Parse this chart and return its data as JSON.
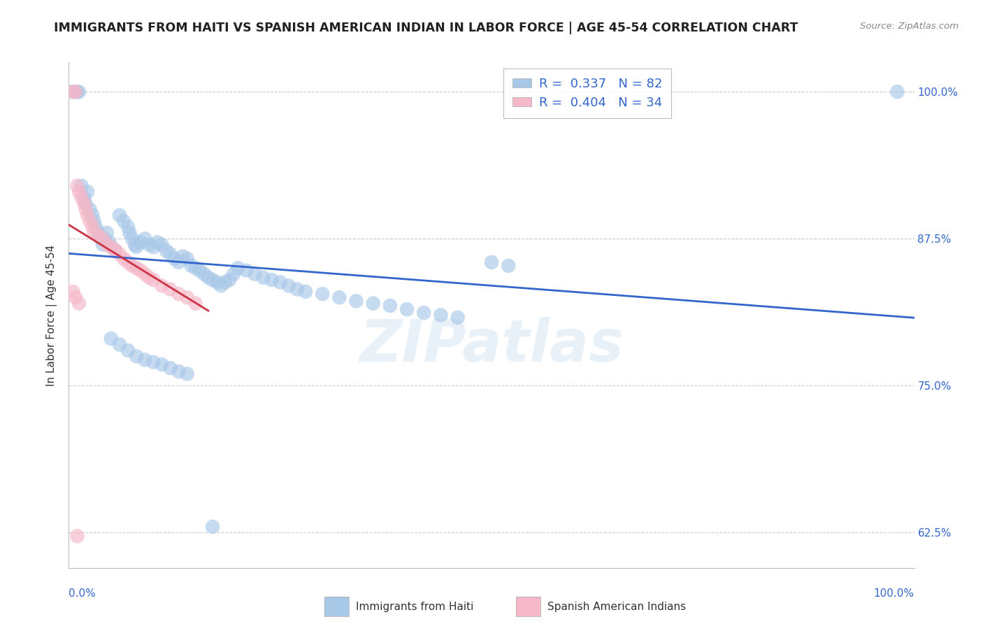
{
  "title": "IMMIGRANTS FROM HAITI VS SPANISH AMERICAN INDIAN IN LABOR FORCE | AGE 45-54 CORRELATION CHART",
  "source": "Source: ZipAtlas.com",
  "ylabel": "In Labor Force | Age 45-54",
  "xlim": [
    0.0,
    1.0
  ],
  "ylim": [
    0.595,
    1.025
  ],
  "ytick_labels": [
    "62.5%",
    "75.0%",
    "87.5%",
    "100.0%"
  ],
  "ytick_values": [
    0.625,
    0.75,
    0.875,
    1.0
  ],
  "haiti_color": "#a8c8e8",
  "spanish_color": "#f5b8c8",
  "trend_haiti_color": "#3366cc",
  "trend_spanish_color": "#cc3344",
  "background_color": "#ffffff",
  "grid_color": "#cccccc",
  "watermark": "ZIPatlas",
  "legend_R_haiti": "R =  0.337   N = 82",
  "legend_R_spanish": "R =  0.404   N = 34",
  "title_color": "#222222",
  "axis_color": "#3366cc",
  "title_fontsize": 12.5,
  "label_fontsize": 11
}
